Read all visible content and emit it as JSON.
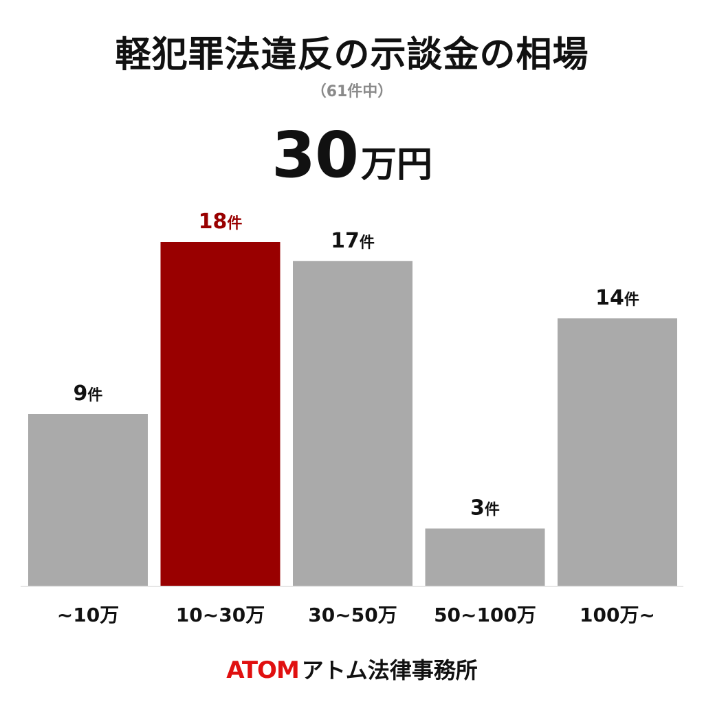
{
  "chart_data": {
    "type": "bar",
    "title": "軽犯罪法違反の示談金の相場",
    "subtitle": "（61件中）",
    "headline_value": "30",
    "headline_unit": "万円",
    "categories": [
      "~10万",
      "10~30万",
      "30~50万",
      "50~100万",
      "100万~"
    ],
    "values": [
      9,
      18,
      17,
      3,
      14
    ],
    "value_suffix": "件",
    "highlight_index": 1,
    "ylim": [
      0,
      20
    ],
    "grid": false,
    "colors": {
      "bar": "#aaaaaa",
      "highlight": "#990000",
      "label": "#111111",
      "highlight_label": "#990000",
      "baseline": "#e6e6e6"
    }
  },
  "footer": {
    "brand": "ATOM",
    "firm": "アトム法律事務所"
  }
}
